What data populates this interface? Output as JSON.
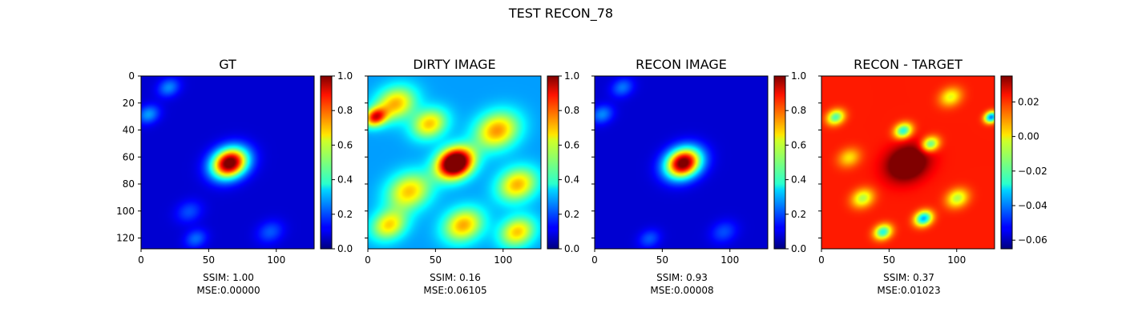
{
  "suptitle": "TEST RECON_78",
  "colors": {
    "colormap": "jet",
    "background": "#ffffff",
    "gt_background": "#0000a8",
    "recon_diff_background": "#ff9a00"
  },
  "chart_data": [
    {
      "type": "heatmap",
      "title": "GT",
      "colormap": "jet",
      "xlim": [
        0,
        128
      ],
      "ylim": [
        128,
        0
      ],
      "xticks": [
        "0",
        "50",
        "100"
      ],
      "yticks": [
        "0",
        "20",
        "40",
        "60",
        "80",
        "100",
        "120"
      ],
      "colorbar": {
        "range": [
          0.0,
          1.0
        ],
        "ticks": [
          "0.0",
          "0.2",
          "0.4",
          "0.6",
          "0.8",
          "1.0"
        ]
      },
      "background_level": 0.08,
      "blobs": [
        {
          "x": 65,
          "y": 64,
          "peak": 1.0,
          "spread": 8
        },
        {
          "x": 20,
          "y": 8,
          "peak": 0.18,
          "spread": 5
        },
        {
          "x": 5,
          "y": 28,
          "peak": 0.2,
          "spread": 5
        },
        {
          "x": 40,
          "y": 120,
          "peak": 0.15,
          "spread": 5
        },
        {
          "x": 95,
          "y": 115,
          "peak": 0.13,
          "spread": 6
        },
        {
          "x": 35,
          "y": 100,
          "peak": 0.12,
          "spread": 6
        }
      ],
      "caption": [
        "SSIM: 1.00",
        "MSE:0.00000"
      ]
    },
    {
      "type": "heatmap",
      "title": "DIRTY IMAGE",
      "colormap": "jet",
      "xlim": [
        0,
        128
      ],
      "ylim": [
        128,
        0
      ],
      "xticks": [
        "0",
        "50",
        "100"
      ],
      "colorbar": {
        "range": [
          0.0,
          1.0
        ],
        "ticks": [
          "0.0",
          "0.2",
          "0.4",
          "0.6",
          "0.8",
          "1.0"
        ]
      },
      "background_level": 0.28,
      "blobs": [
        {
          "x": 64,
          "y": 64,
          "peak": 1.0,
          "spread": 8
        },
        {
          "x": 20,
          "y": 20,
          "peak": 0.42,
          "spread": 9
        },
        {
          "x": 45,
          "y": 35,
          "peak": 0.4,
          "spread": 8
        },
        {
          "x": 95,
          "y": 40,
          "peak": 0.45,
          "spread": 10
        },
        {
          "x": 110,
          "y": 80,
          "peak": 0.42,
          "spread": 9
        },
        {
          "x": 30,
          "y": 85,
          "peak": 0.4,
          "spread": 10
        },
        {
          "x": 70,
          "y": 110,
          "peak": 0.43,
          "spread": 9
        },
        {
          "x": 110,
          "y": 115,
          "peak": 0.4,
          "spread": 8
        },
        {
          "x": 5,
          "y": 30,
          "peak": 0.55,
          "spread": 5
        },
        {
          "x": 15,
          "y": 110,
          "peak": 0.38,
          "spread": 8
        }
      ],
      "caption": [
        "SSIM: 0.16",
        "MSE:0.06105"
      ]
    },
    {
      "type": "heatmap",
      "title": "RECON IMAGE",
      "colormap": "jet",
      "xlim": [
        0,
        128
      ],
      "ylim": [
        128,
        0
      ],
      "xticks": [
        "0",
        "50",
        "100"
      ],
      "colorbar": {
        "range": [
          0.0,
          1.0
        ],
        "ticks": [
          "0.0",
          "0.2",
          "0.4",
          "0.6",
          "0.8",
          "1.0"
        ]
      },
      "background_level": 0.08,
      "blobs": [
        {
          "x": 65,
          "y": 64,
          "peak": 0.98,
          "spread": 8
        },
        {
          "x": 20,
          "y": 8,
          "peak": 0.16,
          "spread": 5
        },
        {
          "x": 5,
          "y": 28,
          "peak": 0.18,
          "spread": 5
        },
        {
          "x": 40,
          "y": 120,
          "peak": 0.13,
          "spread": 5
        },
        {
          "x": 95,
          "y": 115,
          "peak": 0.12,
          "spread": 6
        }
      ],
      "caption": [
        "SSIM: 0.93",
        "MSE:0.00008"
      ]
    },
    {
      "type": "heatmap",
      "title": "RECON - TARGET",
      "colormap": "jet",
      "xlim": [
        0,
        128
      ],
      "ylim": [
        128,
        0
      ],
      "xticks": [
        "0",
        "50",
        "100"
      ],
      "colorbar": {
        "range": [
          -0.065,
          0.035
        ],
        "ticks": [
          "0.02",
          "0.00",
          "−0.02",
          "−0.04",
          "−0.06"
        ],
        "tick_values": [
          0.02,
          0.0,
          -0.02,
          -0.04,
          -0.06
        ]
      },
      "background_level": 0.02,
      "blobs": [
        {
          "x": 63,
          "y": 64,
          "peak": 0.035,
          "spread": 9
        },
        {
          "x": 60,
          "y": 40,
          "peak": -0.045,
          "spread": 4
        },
        {
          "x": 80,
          "y": 50,
          "peak": -0.04,
          "spread": 4
        },
        {
          "x": 10,
          "y": 30,
          "peak": -0.04,
          "spread": 4
        },
        {
          "x": 75,
          "y": 105,
          "peak": -0.055,
          "spread": 4
        },
        {
          "x": 45,
          "y": 115,
          "peak": -0.045,
          "spread": 4
        },
        {
          "x": 125,
          "y": 30,
          "peak": -0.06,
          "spread": 3
        },
        {
          "x": 30,
          "y": 90,
          "peak": -0.03,
          "spread": 5
        },
        {
          "x": 100,
          "y": 90,
          "peak": -0.03,
          "spread": 5
        },
        {
          "x": 95,
          "y": 15,
          "peak": -0.025,
          "spread": 5
        },
        {
          "x": 20,
          "y": 60,
          "peak": -0.02,
          "spread": 5
        }
      ],
      "caption": [
        "SSIM: 0.37",
        "MSE:0.01023"
      ]
    }
  ]
}
